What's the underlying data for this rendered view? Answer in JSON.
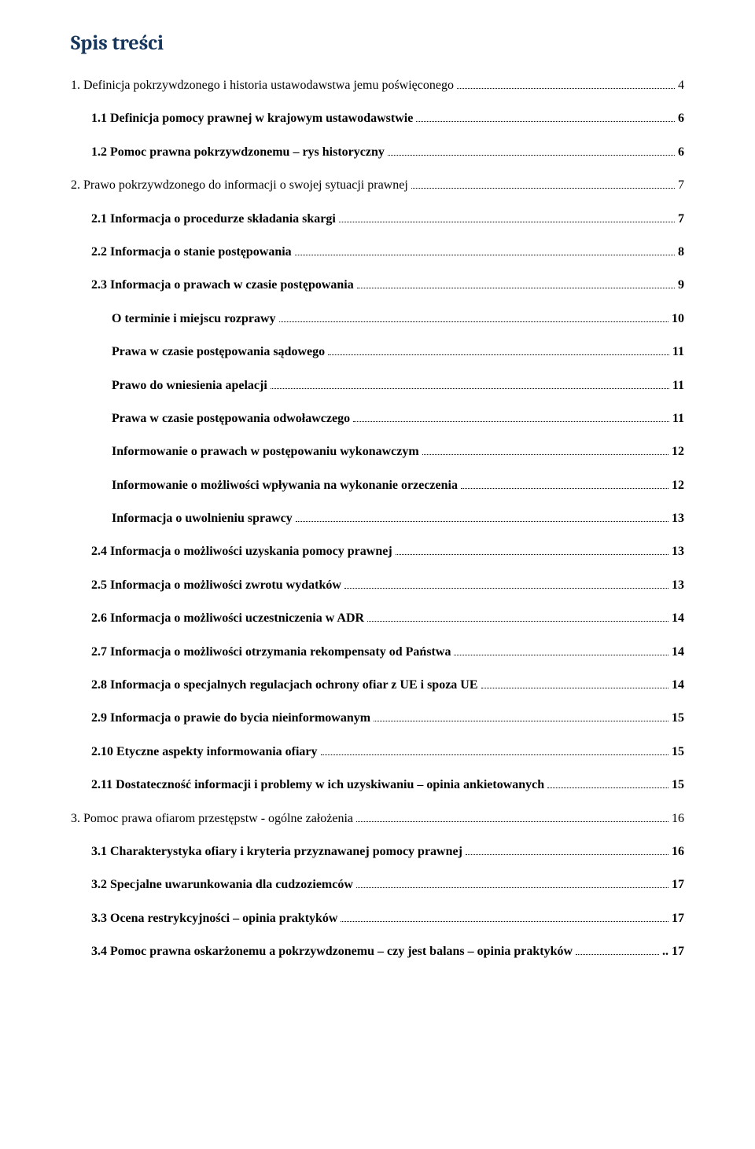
{
  "title": "Spis treści",
  "entries": [
    {
      "level": 0,
      "label": "1. Definicja pokrzywdzonego i historia ustawodawstwa jemu poświęconego",
      "page": "4"
    },
    {
      "level": 1,
      "label": "1.1 Definicja pomocy prawnej w krajowym ustawodawstwie",
      "page": "6"
    },
    {
      "level": 1,
      "label": "1.2 Pomoc prawna pokrzywdzonemu – rys historyczny",
      "page": "6"
    },
    {
      "level": 0,
      "label": "2. Prawo pokrzywdzonego do informacji o swojej sytuacji prawnej",
      "page": "7"
    },
    {
      "level": 1,
      "label": "2.1 Informacja o procedurze składania skargi",
      "page": "7"
    },
    {
      "level": 1,
      "label": "2.2 Informacja o stanie postępowania",
      "page": "8"
    },
    {
      "level": 1,
      "label": "2.3 Informacja o prawach w czasie postępowania",
      "page": "9"
    },
    {
      "level": 2,
      "label": "O terminie i miejscu rozprawy",
      "page": "10"
    },
    {
      "level": 2,
      "label": "Prawa w czasie postępowania sądowego",
      "page": "11"
    },
    {
      "level": 2,
      "label": "Prawo do wniesienia apelacji",
      "page": "11"
    },
    {
      "level": 2,
      "label": "Prawa w czasie postępowania odwoławczego",
      "page": "11"
    },
    {
      "level": 2,
      "label": "Informowanie o prawach w postępowaniu wykonawczym",
      "page": "12"
    },
    {
      "level": 2,
      "label": "Informowanie o możliwości wpływania na wykonanie orzeczenia",
      "page": "12"
    },
    {
      "level": 2,
      "label": "Informacja o uwolnieniu sprawcy",
      "page": "13"
    },
    {
      "level": 1,
      "label": "2.4 Informacja o możliwości uzyskania pomocy prawnej",
      "page": "13"
    },
    {
      "level": 1,
      "label": "2.5 Informacja o możliwości zwrotu wydatków",
      "page": "13"
    },
    {
      "level": 1,
      "label": "2.6 Informacja o możliwości uczestniczenia w ADR",
      "page": "14"
    },
    {
      "level": 1,
      "label": "2.7 Informacja o możliwości otrzymania rekompensaty od Państwa",
      "page": "14"
    },
    {
      "level": 1,
      "label": "2.8 Informacja o specjalnych regulacjach ochrony ofiar z UE i spoza UE",
      "page": "14"
    },
    {
      "level": 1,
      "label": "2.9 Informacja o prawie do bycia nieinformowanym",
      "page": "15"
    },
    {
      "level": 1,
      "label": "2.10 Etyczne aspekty informowania ofiary",
      "page": "15"
    },
    {
      "level": 1,
      "label": "2.11 Dostateczność informacji i problemy w ich uzyskiwaniu – opinia ankietowanych",
      "page": "15"
    },
    {
      "level": 0,
      "label": "3. Pomoc prawa ofiarom przestępstw - ogólne założenia",
      "page": "16"
    },
    {
      "level": 1,
      "label": "3.1 Charakterystyka ofiary i kryteria przyznawanej pomocy prawnej",
      "page": "16"
    },
    {
      "level": 1,
      "label": "3.2 Specjalne uwarunkowania dla cudzoziemców",
      "page": "17"
    },
    {
      "level": 1,
      "label": "3.3 Ocena restrykcyjności – opinia praktyków",
      "page": "17"
    },
    {
      "level": 1,
      "label": "3.4 Pomoc prawna oskarżonemu a pokrzywdzonemu – czy jest balans – opinia praktyków",
      "page": ".. 17"
    }
  ]
}
